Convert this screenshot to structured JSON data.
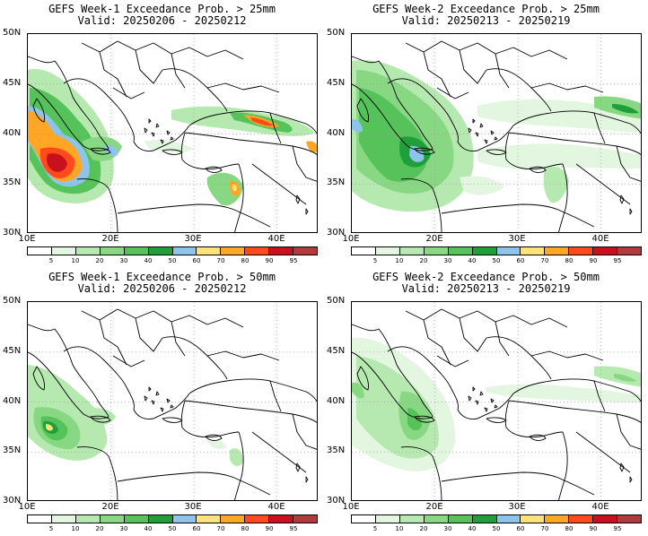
{
  "panels": [
    {
      "line1": "GEFS Week-1 Exceedance Prob. > 25mm",
      "line2": "Valid: 20250206 - 20250212"
    },
    {
      "line1": "GEFS Week-2 Exceedance Prob. > 25mm",
      "line2": "Valid: 20250213 - 20250219"
    },
    {
      "line1": "GEFS Week-1 Exceedance Prob. > 50mm",
      "line2": "Valid: 20250206 - 20250212"
    },
    {
      "line1": "GEFS Week-2 Exceedance Prob. > 50mm",
      "line2": "Valid: 20250213 - 20250219"
    }
  ],
  "lat_labels": [
    "50N",
    "45N",
    "40N",
    "35N",
    "30N"
  ],
  "lon_labels": [
    "10E",
    "20E",
    "30E",
    "40E"
  ],
  "colorbar": {
    "labels": [
      "5",
      "10",
      "20",
      "30",
      "40",
      "50",
      "60",
      "70",
      "80",
      "90",
      "95"
    ],
    "colors": [
      "#ffffff",
      "#e3f7e0",
      "#b6e9b0",
      "#88d883",
      "#56c25a",
      "#1f9f3a",
      "#8ec3ea",
      "#ffe37a",
      "#ffa626",
      "#ff4a1c",
      "#c8101e",
      "#b23a3a"
    ]
  }
}
